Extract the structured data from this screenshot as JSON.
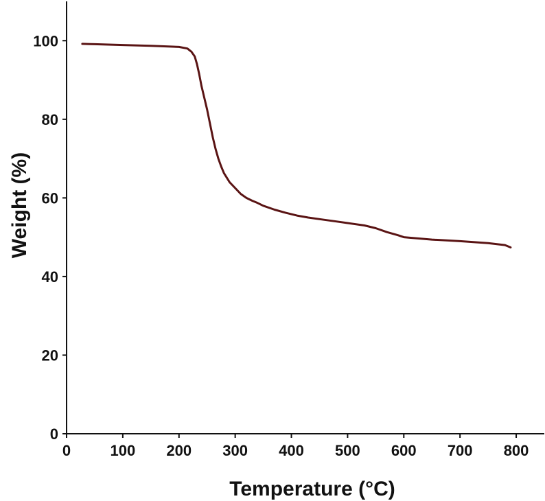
{
  "chart_data": {
    "type": "line",
    "title": "",
    "xlabel": "Temperature (°C)",
    "ylabel": "Weight (%)",
    "xlim": [
      0,
      850
    ],
    "ylim": [
      0,
      110
    ],
    "xticks": [
      0,
      100,
      200,
      300,
      400,
      500,
      600,
      700,
      800
    ],
    "yticks": [
      0,
      20,
      40,
      60,
      80,
      100
    ],
    "grid": false,
    "legend": "none",
    "line_color": "#5a1414",
    "series": [
      {
        "x": [
          28,
          50,
          100,
          150,
          200,
          215,
          222,
          228,
          232,
          236,
          240,
          245,
          250,
          255,
          260,
          265,
          270,
          275,
          280,
          290,
          300,
          310,
          320,
          330,
          340,
          350,
          370,
          390,
          410,
          430,
          450,
          480,
          500,
          530,
          550,
          570,
          590,
          600,
          650,
          700,
          750,
          780,
          790
        ],
        "y": [
          99.2,
          99.1,
          98.9,
          98.7,
          98.4,
          98.0,
          97.2,
          96.0,
          94.0,
          91.5,
          88.5,
          85.5,
          82.5,
          79.0,
          75.5,
          72.5,
          70.0,
          68.0,
          66.3,
          64.0,
          62.5,
          61.0,
          60.0,
          59.3,
          58.7,
          58.0,
          57.0,
          56.2,
          55.5,
          55.0,
          54.6,
          54.0,
          53.6,
          53.0,
          52.3,
          51.3,
          50.5,
          50.0,
          49.4,
          49.0,
          48.5,
          48.0,
          47.4
        ]
      }
    ]
  }
}
